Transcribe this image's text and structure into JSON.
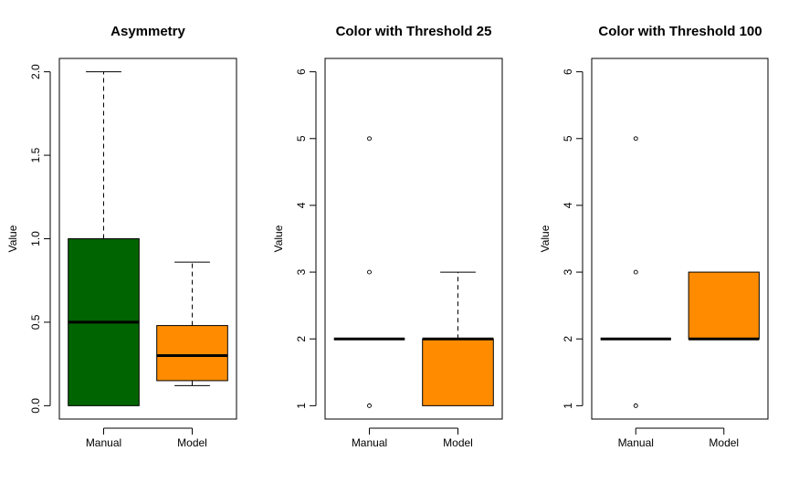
{
  "chart_data": [
    {
      "type": "box",
      "title": "Asymmetry",
      "ylabel": "Value",
      "categories": [
        "Manual",
        "Model"
      ],
      "ylim": [
        0,
        2
      ],
      "yticks": [
        "0.0",
        "0.5",
        "1.0",
        "1.5",
        "2.0"
      ],
      "ytick_values": [
        0,
        0.5,
        1.0,
        1.5,
        2.0
      ],
      "boxes": [
        {
          "name": "Manual",
          "color": "#006400",
          "whisker_low": 0,
          "q1": 0,
          "median": 0.5,
          "q3": 1.0,
          "whisker_high": 2.0,
          "outliers": []
        },
        {
          "name": "Model",
          "color": "#FF8C00",
          "whisker_low": 0.12,
          "q1": 0.15,
          "median": 0.3,
          "q3": 0.48,
          "whisker_high": 0.86,
          "outliers": []
        }
      ]
    },
    {
      "type": "box",
      "title": "Color with Threshold 25",
      "ylabel": "Value",
      "categories": [
        "Manual",
        "Model"
      ],
      "ylim": [
        1,
        6
      ],
      "yticks": [
        "1",
        "2",
        "3",
        "4",
        "5",
        "6"
      ],
      "ytick_values": [
        1,
        2,
        3,
        4,
        5,
        6
      ],
      "boxes": [
        {
          "name": "Manual",
          "color": "#006400",
          "whisker_low": 2,
          "q1": 2,
          "median": 2,
          "q3": 2,
          "whisker_high": 2,
          "outliers": [
            1,
            3,
            5
          ]
        },
        {
          "name": "Model",
          "color": "#FF8C00",
          "whisker_low": 1,
          "q1": 1,
          "median": 2,
          "q3": 2,
          "whisker_high": 3,
          "outliers": []
        }
      ]
    },
    {
      "type": "box",
      "title": "Color with Threshold 100",
      "ylabel": "Value",
      "categories": [
        "Manual",
        "Model"
      ],
      "ylim": [
        1,
        6
      ],
      "yticks": [
        "1",
        "2",
        "3",
        "4",
        "5",
        "6"
      ],
      "ytick_values": [
        1,
        2,
        3,
        4,
        5,
        6
      ],
      "boxes": [
        {
          "name": "Manual",
          "color": "#006400",
          "whisker_low": 2,
          "q1": 2,
          "median": 2,
          "q3": 2,
          "whisker_high": 2,
          "outliers": [
            1,
            3,
            5
          ]
        },
        {
          "name": "Model",
          "color": "#FF8C00",
          "whisker_low": 2,
          "q1": 2,
          "median": 2,
          "q3": 3,
          "whisker_high": 3,
          "outliers": []
        }
      ]
    }
  ]
}
